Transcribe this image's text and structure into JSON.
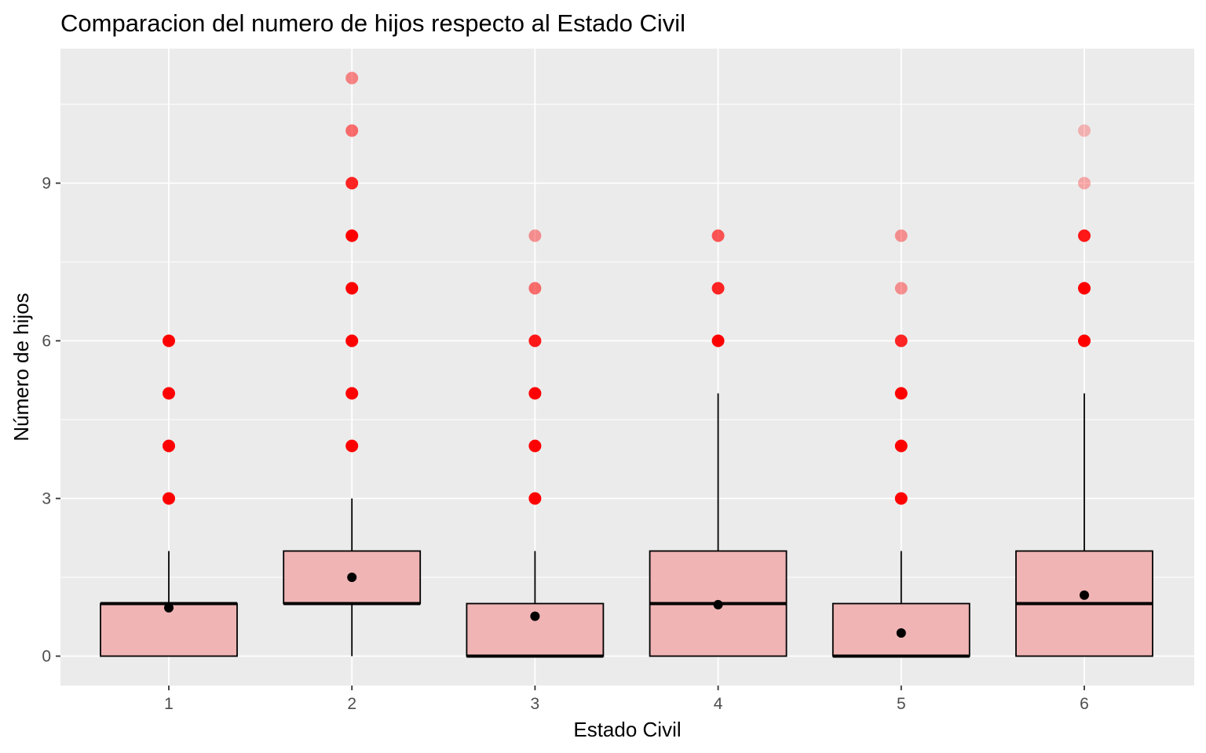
{
  "chart_data": {
    "type": "boxplot",
    "title": "Comparacion del numero de hijos respecto al Estado Civil",
    "xlabel": "Estado Civil",
    "ylabel": "Número de hijos",
    "categories": [
      "1",
      "2",
      "3",
      "4",
      "5",
      "6"
    ],
    "yticks": [
      0,
      3,
      6,
      9
    ],
    "ylim": [
      -0.5,
      11.5
    ],
    "grid": true,
    "legend": "none",
    "boxes": [
      {
        "category": "1",
        "lower_whisker": 0,
        "q1": 0,
        "median": 1,
        "q3": 1,
        "upper_whisker": 2,
        "mean": 0.92,
        "outliers": [
          3,
          4,
          5,
          6
        ]
      },
      {
        "category": "2",
        "lower_whisker": 0,
        "q1": 1,
        "median": 1,
        "q3": 2,
        "upper_whisker": 3,
        "mean": 1.5,
        "outliers": [
          4,
          5,
          6,
          7,
          8,
          9,
          10,
          11
        ]
      },
      {
        "category": "3",
        "lower_whisker": 0,
        "q1": 0,
        "median": 0,
        "q3": 1,
        "upper_whisker": 2,
        "mean": 0.76,
        "outliers": [
          3,
          4,
          5,
          6,
          7,
          8
        ]
      },
      {
        "category": "4",
        "lower_whisker": 0,
        "q1": 0,
        "median": 1,
        "q3": 2,
        "upper_whisker": 5,
        "mean": 0.98,
        "outliers": [
          6,
          7,
          8
        ]
      },
      {
        "category": "5",
        "lower_whisker": 0,
        "q1": 0,
        "median": 0,
        "q3": 1,
        "upper_whisker": 2,
        "mean": 0.44,
        "outliers": [
          3,
          4,
          5,
          6,
          7,
          8
        ]
      },
      {
        "category": "6",
        "lower_whisker": 0,
        "q1": 0,
        "median": 1,
        "q3": 2,
        "upper_whisker": 5,
        "mean": 1.16,
        "outliers": [
          6,
          7,
          8,
          9,
          10
        ]
      }
    ],
    "outlier_opacity": [
      [
        1,
        1,
        1,
        1
      ],
      [
        1,
        1,
        1,
        1,
        1,
        0.85,
        0.55,
        0.45
      ],
      [
        1,
        1,
        1,
        0.9,
        0.55,
        0.4
      ],
      [
        1,
        0.85,
        0.65
      ],
      [
        1,
        1,
        1,
        0.85,
        0.4,
        0.4
      ],
      [
        1,
        1,
        0.9,
        0.3,
        0.25
      ]
    ],
    "colors": {
      "panel_background": "#ebebeb",
      "grid_major": "#ffffff",
      "box_fill": "#f0b4b4",
      "box_outline": "#000000",
      "outlier": "#ff0000",
      "mean_point": "#000000",
      "tick_label": "#4d4d4d"
    }
  }
}
